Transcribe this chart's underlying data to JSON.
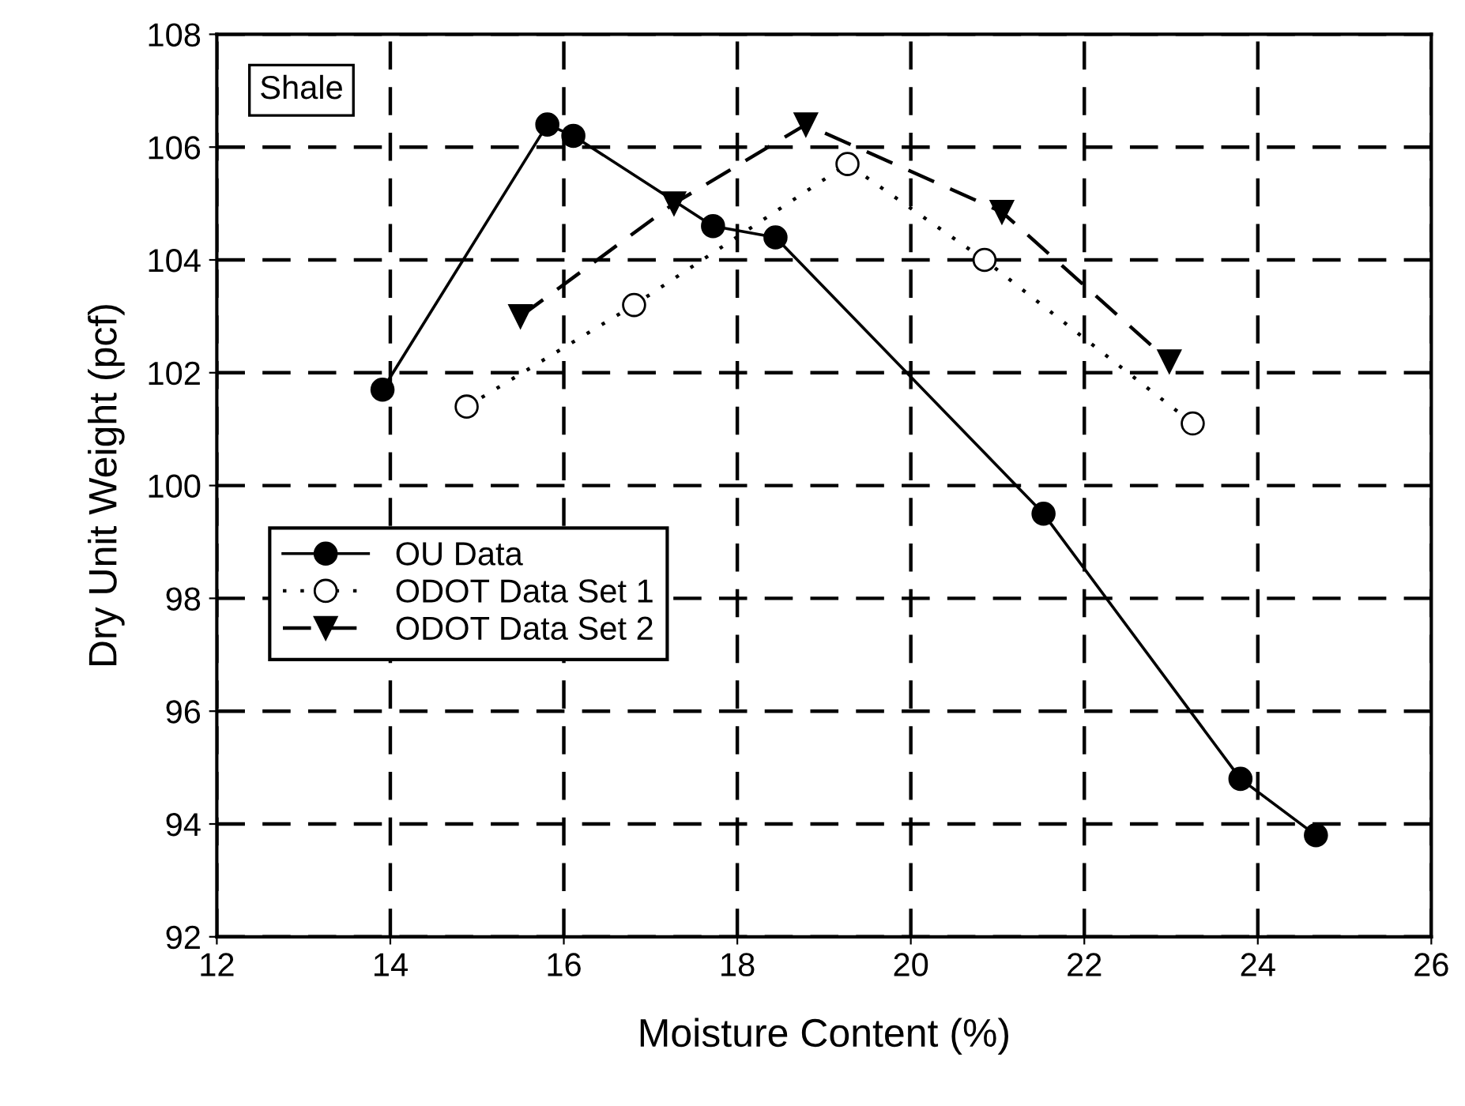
{
  "chart_data": {
    "type": "line",
    "xlabel": "Moisture Content (%)",
    "ylabel": "Dry Unit Weight (pcf)",
    "annotations": [
      "Shale"
    ],
    "series": [
      {
        "name": "OU Data",
        "color": "#000000",
        "marker": "circle",
        "line_style": "solid",
        "x": [
          13.91,
          15.81,
          16.11,
          17.72,
          18.44,
          21.53,
          23.8,
          24.67
        ],
        "values": [
          101.7,
          106.4,
          106.2,
          104.6,
          104.4,
          99.5,
          94.8,
          93.8
        ]
      },
      {
        "name": "ODOT Data Set 1",
        "color": "#000000",
        "marker": "circle",
        "line_style": "dotted",
        "x": [
          14.88,
          16.81,
          19.27,
          20.85,
          23.25
        ],
        "values": [
          101.4,
          103.2,
          105.7,
          104.0,
          101.1
        ]
      },
      {
        "name": "ODOT Data Set 2",
        "color": "#000000",
        "marker": "triangle",
        "line_style": "dashed",
        "x": [
          15.5,
          17.27,
          18.79,
          21.05,
          22.98
        ],
        "values": [
          103.0,
          105.0,
          106.4,
          104.85,
          102.2
        ]
      }
    ],
    "xlim": [
      12,
      26
    ],
    "xticks": [
      12,
      14,
      16,
      18,
      20,
      22,
      24,
      26
    ],
    "ylim": [
      92,
      108
    ],
    "yticks": [
      92,
      94,
      96,
      98,
      100,
      102,
      104,
      106,
      108
    ],
    "grid": true,
    "legend": "left"
  }
}
